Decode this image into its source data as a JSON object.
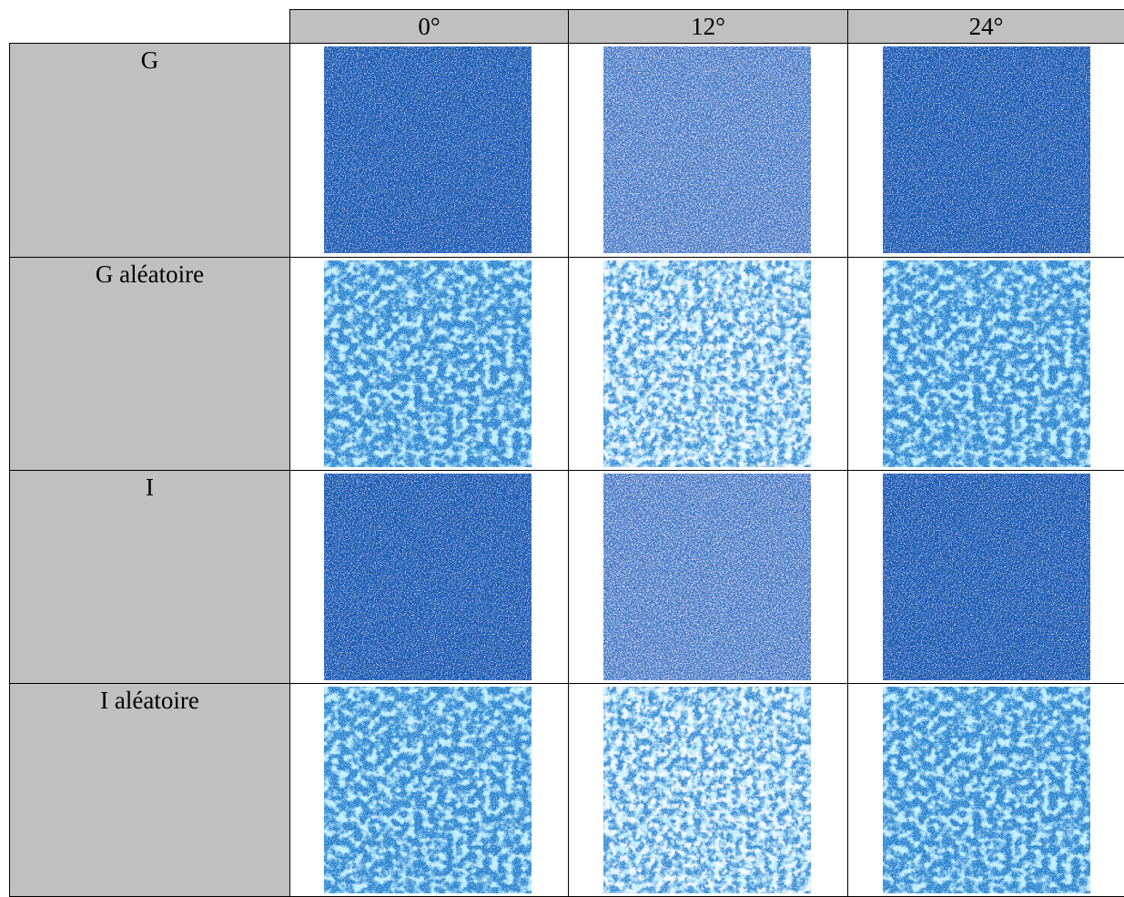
{
  "table": {
    "header": [
      "0°",
      "12°",
      "24°"
    ],
    "rows": [
      {
        "label": "G"
      },
      {
        "label": "G aléatoire"
      },
      {
        "label": "I"
      },
      {
        "label": "I aléatoire"
      }
    ]
  }
}
